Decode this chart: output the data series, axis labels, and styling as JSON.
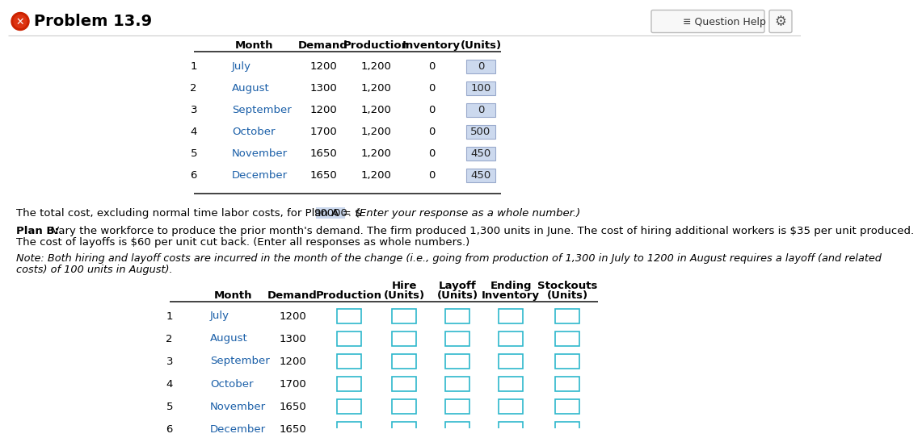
{
  "title": "Problem 13.9",
  "bg_color": "#ffffff",
  "table1_rows": [
    [
      "1",
      "July",
      "1200",
      "1,200",
      "0",
      "0"
    ],
    [
      "2",
      "August",
      "1300",
      "1,200",
      "0",
      "100"
    ],
    [
      "3",
      "September",
      "1200",
      "1,200",
      "0",
      "0"
    ],
    [
      "4",
      "October",
      "1700",
      "1,200",
      "0",
      "500"
    ],
    [
      "5",
      "November",
      "1650",
      "1,200",
      "0",
      "450"
    ],
    [
      "6",
      "December",
      "1650",
      "1,200",
      "0",
      "450"
    ]
  ],
  "highlight_color": "#ccd9ee",
  "highlight_border": "#99aacc",
  "plan_a_prefix": "The total cost, excluding normal time labor costs, for Plan A = $ ",
  "plan_a_value": "90000",
  "plan_a_suffix": " . (Enter your response as a whole number.)",
  "plan_b_bold_part": "Plan B:",
  "plan_b_rest": " Vary the workforce to produce the prior month's demand. The firm produced 1,300 units in June. The cost of hiring additional workers is $35 per unit produced.",
  "plan_b_line2": "The cost of layoffs is $60 per unit cut back. (Enter all responses as whole numbers.)",
  "note_line1": "Note: Both hiring and layoff costs are incurred in the month of the change (i.e., going from production of 1,300 in July to 1200 in August requires a layoff (and related",
  "note_line2": "costs) of 100 units in August).",
  "table2_rows": [
    [
      "1",
      "July",
      "1200"
    ],
    [
      "2",
      "August",
      "1300"
    ],
    [
      "3",
      "September",
      "1200"
    ],
    [
      "4",
      "October",
      "1700"
    ],
    [
      "5",
      "November",
      "1650"
    ],
    [
      "6",
      "December",
      "1650"
    ]
  ],
  "input_border": "#2eb8cc",
  "month_color": "#1a5fa8"
}
